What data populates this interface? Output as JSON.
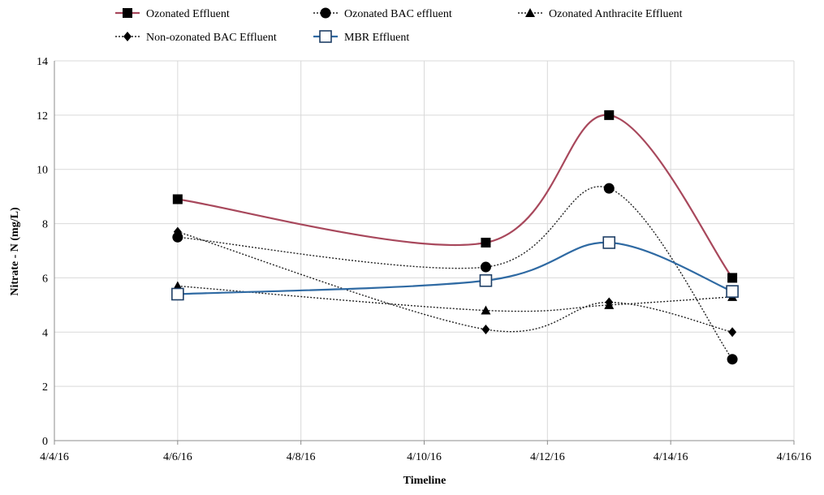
{
  "chart_data": {
    "type": "line",
    "title": "",
    "xlabel": "Timeline",
    "ylabel": "Nitrate - N (mg/L)",
    "xlim": [
      "2016-04-04",
      "2016-04-16"
    ],
    "ylim": [
      0,
      14
    ],
    "x_ticks": [
      "2016-04-04",
      "2016-04-06",
      "2016-04-08",
      "2016-04-10",
      "2016-04-12",
      "2016-04-14",
      "2016-04-16"
    ],
    "x_tick_labels": [
      "4/4/16",
      "4/6/16",
      "4/8/16",
      "4/10/16",
      "4/12/16",
      "4/14/16",
      "4/16/16"
    ],
    "y_ticks": [
      0,
      2,
      4,
      6,
      8,
      10,
      12,
      14
    ],
    "y_tick_labels": [
      "0",
      "2",
      "4",
      "6",
      "8",
      "10",
      "12",
      "14"
    ],
    "grid": true,
    "legend_position": "top",
    "x": [
      "2016-04-06",
      "2016-04-11",
      "2016-04-13",
      "2016-04-15"
    ],
    "series": [
      {
        "name": "Ozonated Effluent",
        "marker": "square-filled",
        "line": "solid",
        "color": "#a8485c",
        "values": [
          8.9,
          7.3,
          12.0,
          6.0
        ]
      },
      {
        "name": "Ozonated BAC effluent",
        "marker": "circle-filled",
        "line": "dotted",
        "color": "#222222",
        "values": [
          7.5,
          6.4,
          9.3,
          3.0
        ]
      },
      {
        "name": "Ozonated Anthracite Effluent",
        "marker": "triangle-filled",
        "line": "dotted",
        "color": "#222222",
        "values": [
          5.7,
          4.8,
          5.0,
          5.3
        ]
      },
      {
        "name": "Non-ozonated BAC Effluent",
        "marker": "diamond-filled",
        "line": "dotted",
        "color": "#222222",
        "values": [
          7.7,
          4.1,
          5.1,
          4.0
        ]
      },
      {
        "name": "MBR Effluent",
        "marker": "square-open",
        "line": "solid",
        "color": "#2f6aa3",
        "values": [
          5.4,
          5.9,
          7.3,
          5.5
        ]
      }
    ]
  }
}
